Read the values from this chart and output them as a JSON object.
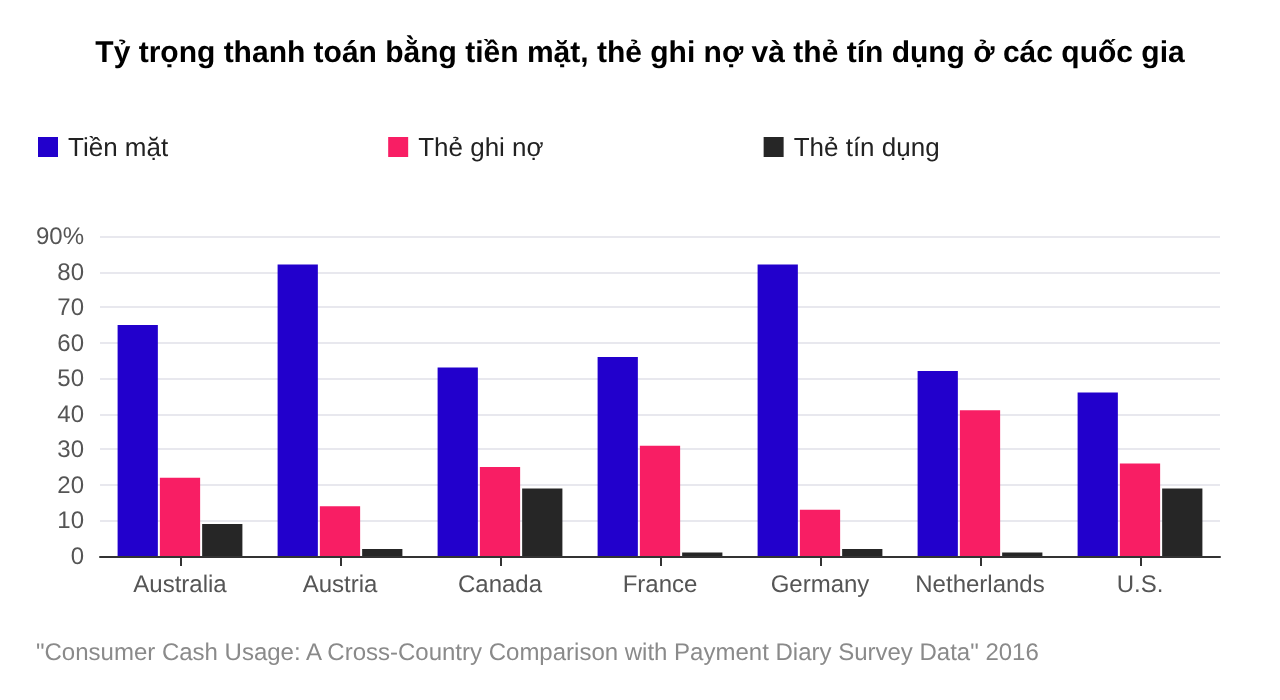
{
  "chart_data": {
    "type": "bar",
    "title": "Tỷ trọng thanh toán bằng tiền mặt, thẻ ghi nợ và thẻ tín dụng ở các quốc gia",
    "categories": [
      "Australia",
      "Austria",
      "Canada",
      "France",
      "Germany",
      "Netherlands",
      "U.S."
    ],
    "series": [
      {
        "name": "Tiền mặt",
        "color": "#2200cc",
        "values": [
          65,
          82,
          53,
          56,
          82,
          52,
          46
        ]
      },
      {
        "name": "Thẻ ghi nợ",
        "color": "#f81e64",
        "values": [
          22,
          14,
          25,
          31,
          13,
          41,
          26
        ]
      },
      {
        "name": "Thẻ tín dụng",
        "color": "#262626",
        "values": [
          9,
          2,
          19,
          1,
          2,
          1,
          19
        ]
      }
    ],
    "ylim": [
      0,
      90
    ],
    "yticks": [
      0,
      10,
      20,
      30,
      40,
      50,
      60,
      70,
      80,
      {
        "value": 90,
        "label": "90%"
      }
    ],
    "grid": "y",
    "legend": "top left",
    "annotations": [
      "\"Consumer Cash Usage: A Cross-Country Comparison with Payment Diary Survey Data\" 2016"
    ]
  }
}
